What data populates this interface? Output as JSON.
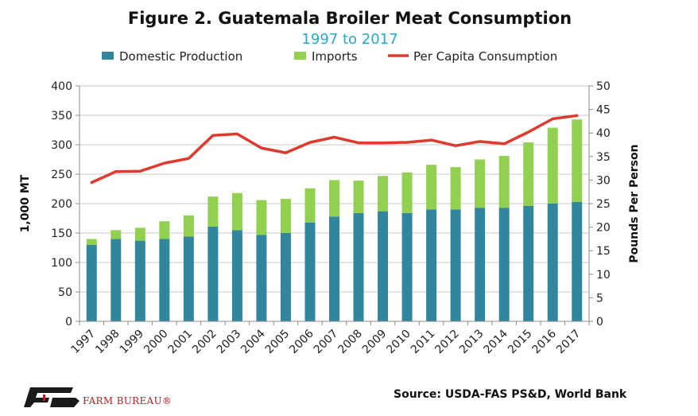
{
  "chart_data": {
    "type": "bar",
    "stacked": true,
    "title": "Figure 2. Guatemala Broiler Meat Consumption",
    "subtitle": "1997 to 2017",
    "categories": [
      "1997",
      "1998",
      "1999",
      "2000",
      "2001",
      "2002",
      "2003",
      "2004",
      "2005",
      "2006",
      "2007",
      "2008",
      "2009",
      "2010",
      "2011",
      "2012",
      "2013",
      "2014",
      "2015",
      "2016",
      "2017"
    ],
    "series": [
      {
        "name": "Domestic Production",
        "type": "bar",
        "axis": "left",
        "color": "#31859c",
        "values": [
          130,
          140,
          137,
          140,
          144,
          161,
          155,
          147,
          150,
          168,
          178,
          184,
          187,
          184,
          190,
          190,
          193,
          193,
          196,
          200,
          203
        ]
      },
      {
        "name": "Imports",
        "type": "bar",
        "axis": "left",
        "color": "#92d050",
        "values": [
          10,
          15,
          22,
          30,
          36,
          51,
          63,
          59,
          58,
          58,
          62,
          55,
          60,
          69,
          76,
          72,
          82,
          88,
          108,
          129,
          140
        ]
      },
      {
        "name": "Per Capita Consumption",
        "type": "line",
        "axis": "right",
        "color": "#e03a2e",
        "values": [
          29.5,
          31.8,
          31.9,
          33.6,
          34.6,
          39.5,
          39.8,
          36.8,
          35.8,
          38,
          39.1,
          37.9,
          37.9,
          38,
          38.5,
          37.3,
          38.2,
          37.7,
          40.2,
          43,
          43.7
        ]
      }
    ],
    "ylabel": "1,000 MT",
    "y2label": "Pounds Per Person",
    "ylim": [
      0,
      400
    ],
    "y2lim": [
      0,
      50
    ],
    "yticks": [
      0,
      50,
      100,
      150,
      200,
      250,
      300,
      350,
      400
    ],
    "y2ticks": [
      0,
      5,
      10,
      15,
      20,
      25,
      30,
      35,
      40,
      45,
      50
    ],
    "grid": true,
    "legend": "top"
  },
  "footer": {
    "source": "Source: USDA-FAS PS&D, World Bank",
    "brand": "FARM BUREAU®"
  }
}
